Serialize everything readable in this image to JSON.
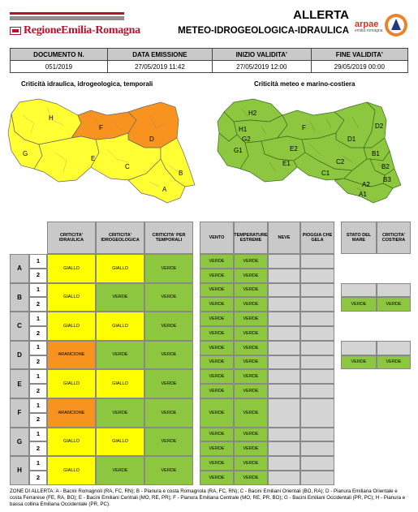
{
  "header": {
    "region_logo": "RegioneEmilia-Romagna",
    "title": "ALLERTA",
    "subtitle": "METEO-IDROGEOLOGICA-IDRAULICA",
    "arpae": "arpae",
    "arpae_sub": "emilia-romagna"
  },
  "info": {
    "labels": [
      "DOCUMENTO N.",
      "DATA EMISSIONE",
      "INIZIO VALIDITA'",
      "FINE VALIDITA'"
    ],
    "values": [
      "051/2019",
      "27/05/2019 11:42",
      "27/05/2019 12:00",
      "29/05/2019 00:00"
    ]
  },
  "maps": {
    "left_title": "Criticità idraulica, idrogeologica, temporali",
    "right_title": "Criticità meteo e marino-costiera",
    "left_labels": [
      "H",
      "G",
      "F",
      "D",
      "E",
      "C",
      "B",
      "A"
    ],
    "right_labels": [
      "H2",
      "H1",
      "G2",
      "G1",
      "F",
      "E2",
      "E1",
      "D1",
      "D2",
      "C1",
      "C2",
      "B1",
      "B2",
      "B3",
      "A2",
      "A1"
    ]
  },
  "table": {
    "headers": [
      "CRITICITA' IDRAULICA",
      "CRITICITA' IDROGEOLOGICA",
      "CRITICITA' PER TEMPORALI",
      "VENTO",
      "TEMPERATURE ESTREME",
      "NEVE",
      "PIOGGIA CHE GELA",
      "STATO DEL MARE",
      "CRITICITA' COSTIERA"
    ],
    "zones": [
      {
        "zone": "A",
        "idr": "GIALLO",
        "idrog": "GIALLO",
        "temp": "VERDE",
        "vento": [
          "VERDE",
          "VERDE"
        ],
        "tempest": [
          "VERDE",
          "VERDE"
        ],
        "neve": [
          "",
          ""
        ],
        "pioggia": [
          "",
          ""
        ],
        "mare": null,
        "costiera": null
      },
      {
        "zone": "B",
        "idr": "GIALLO",
        "idrog": "VERDE",
        "temp": "VERDE",
        "vento": [
          "VERDE",
          "VERDE"
        ],
        "tempest": [
          "VERDE",
          "VERDE"
        ],
        "neve": [
          "",
          ""
        ],
        "pioggia": [
          "",
          ""
        ],
        "mare": [
          "",
          "VERDE"
        ],
        "costiera": [
          "",
          "VERDE"
        ]
      },
      {
        "zone": "C",
        "idr": "GIALLO",
        "idrog": "GIALLO",
        "temp": "VERDE",
        "vento": [
          "VERDE",
          "VERDE"
        ],
        "tempest": [
          "VERDE",
          "VERDE"
        ],
        "neve": [
          "",
          ""
        ],
        "pioggia": [
          "",
          ""
        ],
        "mare": null,
        "costiera": null
      },
      {
        "zone": "D",
        "idr": "ARANCIONE",
        "idrog": "VERDE",
        "temp": "VERDE",
        "vento": [
          "VERDE",
          "VERDE"
        ],
        "tempest": [
          "VERDE",
          "VERDE"
        ],
        "neve": [
          "",
          ""
        ],
        "pioggia": [
          "",
          ""
        ],
        "mare": [
          "",
          "VERDE"
        ],
        "costiera": [
          "",
          "VERDE"
        ]
      },
      {
        "zone": "E",
        "idr": "GIALLO",
        "idrog": "GIALLO",
        "temp": "VERDE",
        "vento": [
          "VERDE",
          "VERDE"
        ],
        "tempest": [
          "VERDE",
          "VERDE"
        ],
        "neve": [
          "",
          ""
        ],
        "pioggia": [
          "",
          ""
        ],
        "mare": null,
        "costiera": null
      },
      {
        "zone": "F",
        "idr": "ARANCIONE",
        "idrog": "VERDE",
        "temp": "VERDE",
        "vento": [
          "VERDE"
        ],
        "tempest": [
          "VERDE"
        ],
        "neve": [
          ""
        ],
        "pioggia": [
          ""
        ],
        "mare": null,
        "costiera": null
      },
      {
        "zone": "G",
        "idr": "GIALLO",
        "idrog": "GIALLO",
        "temp": "VERDE",
        "vento": [
          "VERDE",
          "VERDE"
        ],
        "tempest": [
          "VERDE",
          "VERDE"
        ],
        "neve": [
          "",
          ""
        ],
        "pioggia": [
          "",
          ""
        ],
        "mare": null,
        "costiera": null
      },
      {
        "zone": "H",
        "idr": "GIALLO",
        "idrog": "VERDE",
        "temp": "VERDE",
        "vento": [
          "VERDE",
          "VERDE"
        ],
        "tempest": [
          "VERDE",
          "VERDE"
        ],
        "neve": [
          "",
          ""
        ],
        "pioggia": [
          "",
          ""
        ],
        "mare": null,
        "costiera": null
      }
    ]
  },
  "colors": {
    "GIALLO": "#ffff00",
    "ARANCIONE": "#f7931e",
    "VERDE": "#8dc63f",
    "EMPTY": "#d4d4d4"
  },
  "footer": {
    "zones_text": "ZONE DI ALLERTA: A - Bacini Romagnoli (RA, FC, RN); B - Pianura e costa Romagnola (RA, FC, RN); C - Bacini Emiliani Orientali (BO, RA); D - Pianura Emiliana Orientale e costa Ferrarese (FE, RA, BO); E - Bacini Emiliani Centrali (MO, RE, PR); F - Pianura Emiliana Centrale (MO, RE, PR, BO); G - Bacini Emiliani Occidentali (PR, PC); H - Pianura e bassa collina Emiliana Occidentale (PR, PC)."
  }
}
